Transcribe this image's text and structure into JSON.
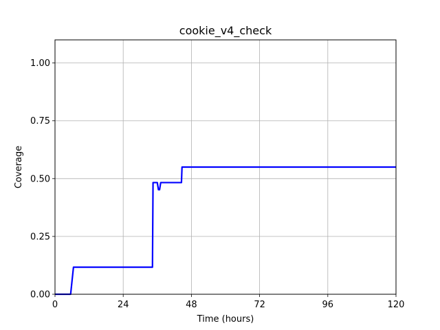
{
  "chart_data": {
    "type": "line",
    "title": "cookie_v4_check",
    "xlabel": "Time (hours)",
    "ylabel": "Coverage",
    "xlim": [
      0,
      120
    ],
    "ylim": [
      0,
      1.1
    ],
    "x_ticks": [
      0,
      24,
      48,
      72,
      96,
      120
    ],
    "y_ticks": [
      0.0,
      0.25,
      0.5,
      0.75,
      1.0
    ],
    "x_tick_labels": [
      "0",
      "24",
      "48",
      "72",
      "96",
      "120"
    ],
    "y_tick_labels": [
      "0.00",
      "0.25",
      "0.50",
      "0.75",
      "1.00"
    ],
    "grid": true,
    "legend": "none",
    "series": [
      {
        "color": "#0000ff",
        "x": [
          0,
          5.5,
          6.5,
          34.3,
          34.5,
          36.0,
          36.4,
          36.8,
          37.2,
          44.5,
          44.7,
          120
        ],
        "y": [
          0,
          0,
          0.117,
          0.117,
          0.483,
          0.483,
          0.452,
          0.452,
          0.483,
          0.483,
          0.55,
          0.55
        ]
      }
    ]
  }
}
